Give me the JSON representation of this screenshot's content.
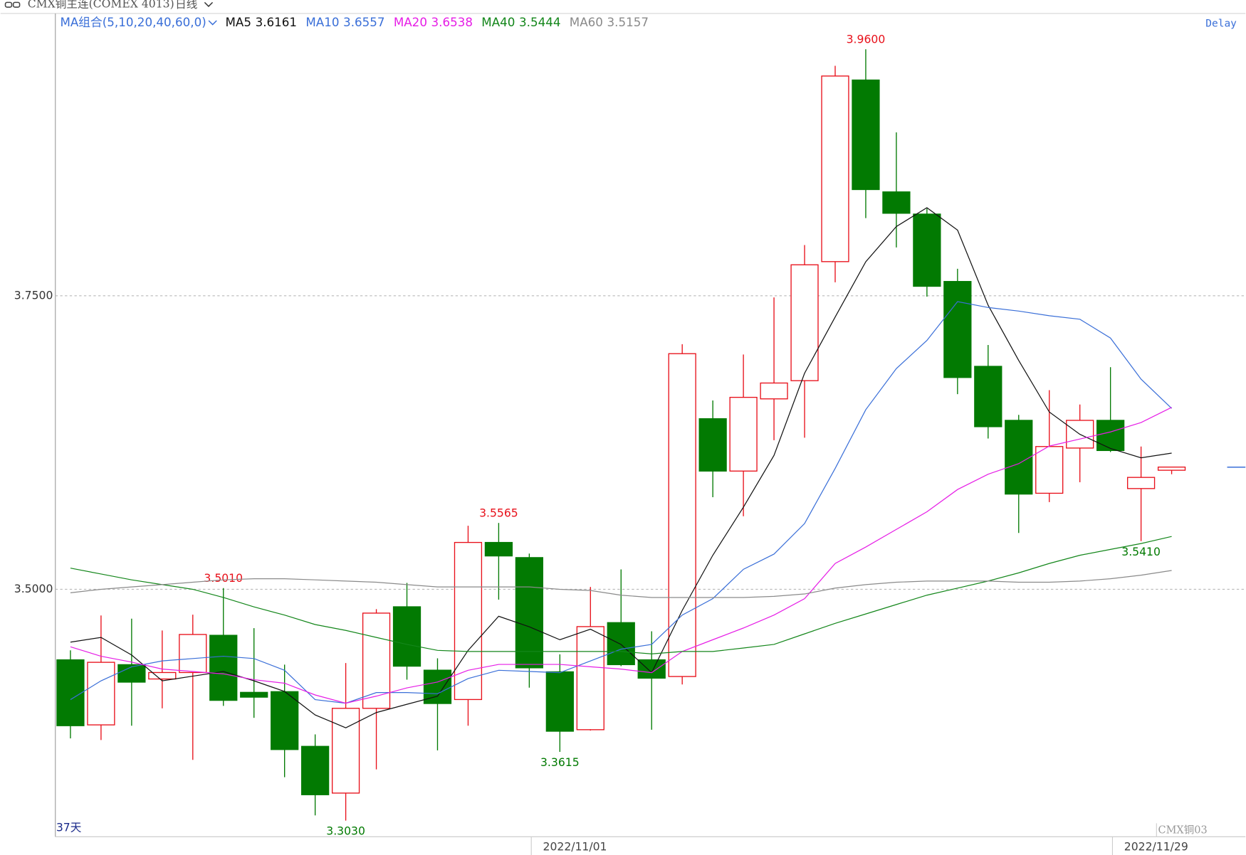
{
  "header": {
    "symbol": "CMX铜主连(COMEX 4013)",
    "period": "日线",
    "status": "Delay",
    "ma_group": "MA组合(5,10,20,40,60,0)"
  },
  "footer": {
    "days": "37天",
    "source": "CMX铜03"
  },
  "chart_data": {
    "type": "candlestick",
    "categories": [
      null,
      null,
      null,
      null,
      null,
      null,
      null,
      null,
      null,
      null,
      null,
      null,
      null,
      null,
      null,
      null,
      "2022/11/01",
      null,
      null,
      null,
      null,
      null,
      null,
      null,
      null,
      null,
      null,
      null,
      null,
      null,
      null,
      null,
      null,
      null,
      null,
      "2022/11/29",
      null
    ],
    "open": [
      3.4399,
      3.3845,
      3.4358,
      3.4236,
      3.4291,
      3.4608,
      3.4122,
      3.4128,
      3.3662,
      3.3264,
      3.3986,
      3.4851,
      3.4311,
      3.4061,
      3.5399,
      3.527,
      3.4297,
      3.3804,
      3.4716,
      3.4399,
      3.4257,
      3.6453,
      3.6007,
      3.6622,
      3.6777,
      3.7791,
      3.9338,
      3.8385,
      3.8196,
      3.7622,
      3.6899,
      3.6439,
      3.5818,
      3.6203,
      3.6439,
      3.5858,
      3.6014
    ],
    "high": [
      3.448,
      3.4777,
      3.475,
      3.4649,
      3.4784,
      3.501,
      3.4669,
      3.4358,
      3.3764,
      3.4372,
      3.4831,
      3.5054,
      3.4412,
      3.5541,
      3.5565,
      3.5304,
      3.4446,
      3.502,
      3.5169,
      3.4642,
      3.7088,
      3.6608,
      3.7,
      3.7486,
      3.7932,
      3.9459,
      3.96,
      3.8892,
      3.8243,
      3.773,
      3.7081,
      3.6486,
      3.6696,
      3.6574,
      3.6892,
      3.6216,
      3.6041
    ],
    "low": [
      3.373,
      3.3716,
      3.3838,
      3.3986,
      3.3547,
      3.4007,
      3.3905,
      3.3399,
      3.3074,
      3.303,
      3.3466,
      3.423,
      3.3628,
      3.3838,
      3.4912,
      3.4162,
      3.3615,
      3.3797,
      3.4345,
      3.3804,
      3.4189,
      3.5784,
      3.5622,
      3.627,
      3.6291,
      3.7615,
      3.8162,
      3.7912,
      3.7493,
      3.6662,
      3.6284,
      3.548,
      3.5743,
      3.5912,
      3.6169,
      3.541,
      3.598
    ],
    "close": [
      3.3838,
      3.4378,
      3.4209,
      3.4291,
      3.4615,
      3.4054,
      3.4081,
      3.3635,
      3.325,
      3.3986,
      3.4797,
      3.4345,
      3.4027,
      3.5399,
      3.5284,
      3.4331,
      3.3791,
      3.4682,
      3.4358,
      3.4243,
      3.7007,
      3.6007,
      3.6635,
      3.6757,
      3.7764,
      3.9372,
      3.8405,
      3.8203,
      3.7581,
      3.6804,
      3.6385,
      3.5811,
      3.6216,
      3.6439,
      3.6182,
      3.5953,
      3.6041
    ],
    "high_labels": [
      null,
      null,
      null,
      null,
      null,
      "3.5010",
      null,
      null,
      null,
      null,
      null,
      null,
      null,
      null,
      "3.5565",
      null,
      null,
      null,
      null,
      null,
      null,
      null,
      null,
      null,
      null,
      null,
      "3.9600",
      null,
      null,
      null,
      null,
      null,
      null,
      null,
      null,
      null,
      null
    ],
    "low_labels": [
      null,
      null,
      null,
      null,
      null,
      null,
      null,
      null,
      null,
      "3.3030",
      null,
      null,
      null,
      null,
      null,
      null,
      "3.3615",
      null,
      null,
      null,
      null,
      null,
      null,
      null,
      null,
      null,
      null,
      null,
      null,
      null,
      null,
      null,
      null,
      null,
      null,
      "3.5410",
      null
    ],
    "up_color": "#e8101a",
    "down_color": "#027a02",
    "high_label_color": "#e8101a",
    "low_label_color": "#027a02",
    "series": [
      {
        "name": "MA5",
        "color": "#111111",
        "last": 3.6161,
        "values": [
          3.455,
          3.459,
          3.444,
          3.422,
          3.426,
          3.43,
          3.422,
          3.413,
          3.393,
          3.382,
          3.395,
          3.402,
          3.409,
          3.448,
          3.477,
          3.468,
          3.457,
          3.466,
          3.453,
          3.429,
          3.482,
          3.529,
          3.57,
          3.614,
          3.684,
          3.732,
          3.779,
          3.809,
          3.825,
          3.806,
          3.742,
          3.695,
          3.651,
          3.632,
          3.62,
          3.612,
          3.616
        ]
      },
      {
        "name": "MA10",
        "color": "#3a6fd8",
        "last": 3.6557,
        "values": [
          3.406,
          3.422,
          3.434,
          3.439,
          3.441,
          3.443,
          3.441,
          3.431,
          3.406,
          3.403,
          3.412,
          3.412,
          3.411,
          3.424,
          3.431,
          3.43,
          3.429,
          3.439,
          3.449,
          3.453,
          3.478,
          3.492,
          3.517,
          3.53,
          3.556,
          3.603,
          3.653,
          3.688,
          3.712,
          3.745,
          3.74,
          3.737,
          3.733,
          3.73,
          3.714,
          3.679,
          3.654
        ]
      },
      {
        "name": "MA20",
        "color": "#e61ee6",
        "last": 3.6538,
        "values": [
          3.451,
          3.443,
          3.438,
          3.432,
          3.43,
          3.428,
          3.423,
          3.42,
          3.41,
          3.403,
          3.409,
          3.416,
          3.421,
          3.431,
          3.436,
          3.436,
          3.436,
          3.434,
          3.432,
          3.429,
          3.447,
          3.457,
          3.467,
          3.478,
          3.492,
          3.522,
          3.536,
          3.551,
          3.566,
          3.585,
          3.598,
          3.607,
          3.622,
          3.628,
          3.634,
          3.642,
          3.655
        ]
      },
      {
        "name": "MA40",
        "color": "#13861a",
        "last": 3.5444,
        "values": [
          3.518,
          3.513,
          3.508,
          3.504,
          3.5,
          3.493,
          3.485,
          3.478,
          3.47,
          3.465,
          3.459,
          3.453,
          3.448,
          3.447,
          3.447,
          3.447,
          3.447,
          3.447,
          3.447,
          3.445,
          3.447,
          3.447,
          3.45,
          3.453,
          3.462,
          3.471,
          3.479,
          3.487,
          3.495,
          3.501,
          3.507,
          3.514,
          3.522,
          3.529,
          3.534,
          3.539,
          3.545
        ]
      },
      {
        "name": "MA60",
        "color": "#8a8a8a",
        "last": 3.5157,
        "values": [
          3.497,
          3.5,
          3.502,
          3.504,
          3.506,
          3.508,
          3.509,
          3.509,
          3.508,
          3.507,
          3.506,
          3.504,
          3.502,
          3.502,
          3.502,
          3.502,
          3.5,
          3.499,
          3.495,
          3.493,
          3.493,
          3.493,
          3.493,
          3.494,
          3.496,
          3.501,
          3.504,
          3.506,
          3.507,
          3.507,
          3.507,
          3.506,
          3.506,
          3.507,
          3.509,
          3.512,
          3.516
        ]
      }
    ],
    "ylim": [
      3.2892,
      3.9898
    ],
    "yticks": [
      {
        "value": 3.5,
        "label": "3.5000"
      },
      {
        "value": 3.75,
        "label": "3.7500"
      }
    ],
    "grid": true
  }
}
